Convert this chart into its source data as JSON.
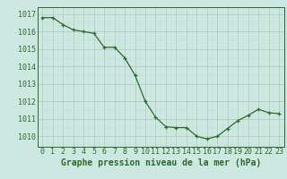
{
  "x": [
    0,
    1,
    2,
    3,
    4,
    5,
    6,
    7,
    8,
    9,
    10,
    11,
    12,
    13,
    14,
    15,
    16,
    17,
    18,
    19,
    20,
    21,
    22,
    23
  ],
  "y": [
    1016.8,
    1016.8,
    1016.4,
    1016.1,
    1016.0,
    1015.9,
    1015.1,
    1015.1,
    1014.5,
    1013.5,
    1012.0,
    1011.1,
    1010.55,
    1010.5,
    1010.5,
    1010.0,
    1009.85,
    1010.0,
    1010.45,
    1010.9,
    1011.2,
    1011.55,
    1011.35,
    1011.3
  ],
  "line_color": "#2d6a2d",
  "marker_color": "#2d6a2d",
  "bg_color": "#cce8e0",
  "grid_color_major": "#b0c8be",
  "grid_color_minor": "#c4dcd6",
  "ylabel_ticks": [
    1010,
    1011,
    1012,
    1013,
    1014,
    1015,
    1016,
    1017
  ],
  "xlabel": "Graphe pression niveau de la mer (hPa)",
  "xlabel_fontsize": 7,
  "tick_fontsize": 6,
  "ylim": [
    1009.4,
    1017.4
  ],
  "xlim": [
    -0.5,
    23.5
  ],
  "xtick_labels": [
    "0",
    "1",
    "2",
    "3",
    "4",
    "5",
    "6",
    "7",
    "8",
    "9",
    "10",
    "11",
    "12",
    "13",
    "14",
    "15",
    "16",
    "17",
    "18",
    "19",
    "20",
    "21",
    "22",
    "23"
  ]
}
